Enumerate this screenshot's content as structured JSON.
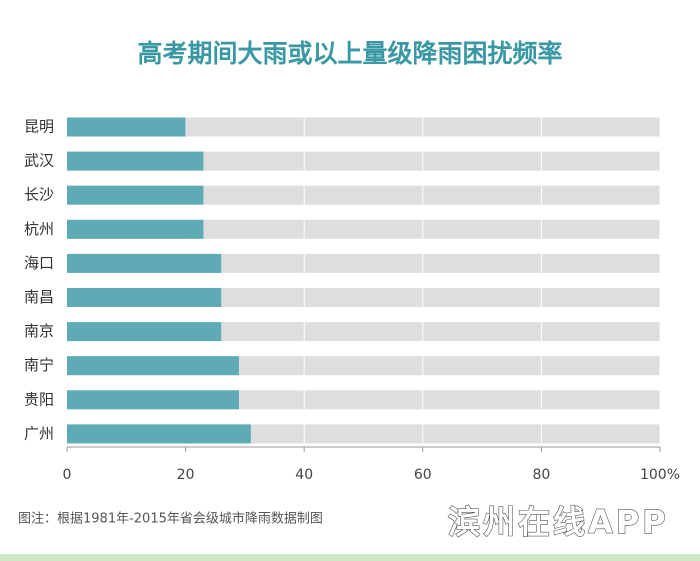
{
  "chart_data": {
    "type": "barh",
    "title": "高考期间大雨或以上量级降雨困扰频率",
    "categories": [
      "昆明",
      "武汉",
      "长沙",
      "杭州",
      "海口",
      "南昌",
      "南京",
      "南宁",
      "贵阳",
      "广州"
    ],
    "values": [
      20,
      23,
      23,
      23,
      26,
      26,
      26,
      29,
      29,
      31
    ],
    "color": "#5eaab5",
    "xlim": [
      0,
      100
    ],
    "xticks": [
      0,
      20,
      40,
      60,
      80,
      {
        "value": 100,
        "label": "100%"
      }
    ],
    "grid": true,
    "note": "图注：根据1981年-2015年省会级城市降雨数据制图",
    "watermark": "滨州在线APP"
  }
}
